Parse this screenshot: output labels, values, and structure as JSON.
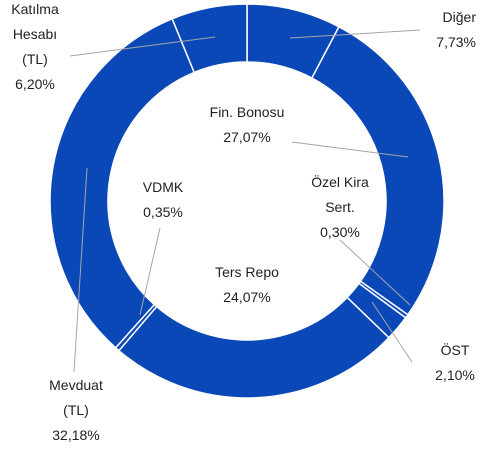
{
  "chart_data": {
    "type": "donut",
    "categories": [
      "Diğer",
      "Fin. Bonosu",
      "Özel Kira Sert.",
      "ÖST",
      "Ters Repo",
      "VDMK",
      "Mevduat (TL)",
      "Katılma Hesabı (TL)"
    ],
    "values": [
      7.73,
      27.07,
      0.3,
      2.1,
      24.07,
      0.35,
      32.18,
      6.2
    ],
    "value_labels": [
      "7,73%",
      "27,07%",
      "0,30%",
      "2,10%",
      "24,07%",
      "0,35%",
      "32,18%",
      "6,20%"
    ],
    "color": "#0a48b8"
  }
}
